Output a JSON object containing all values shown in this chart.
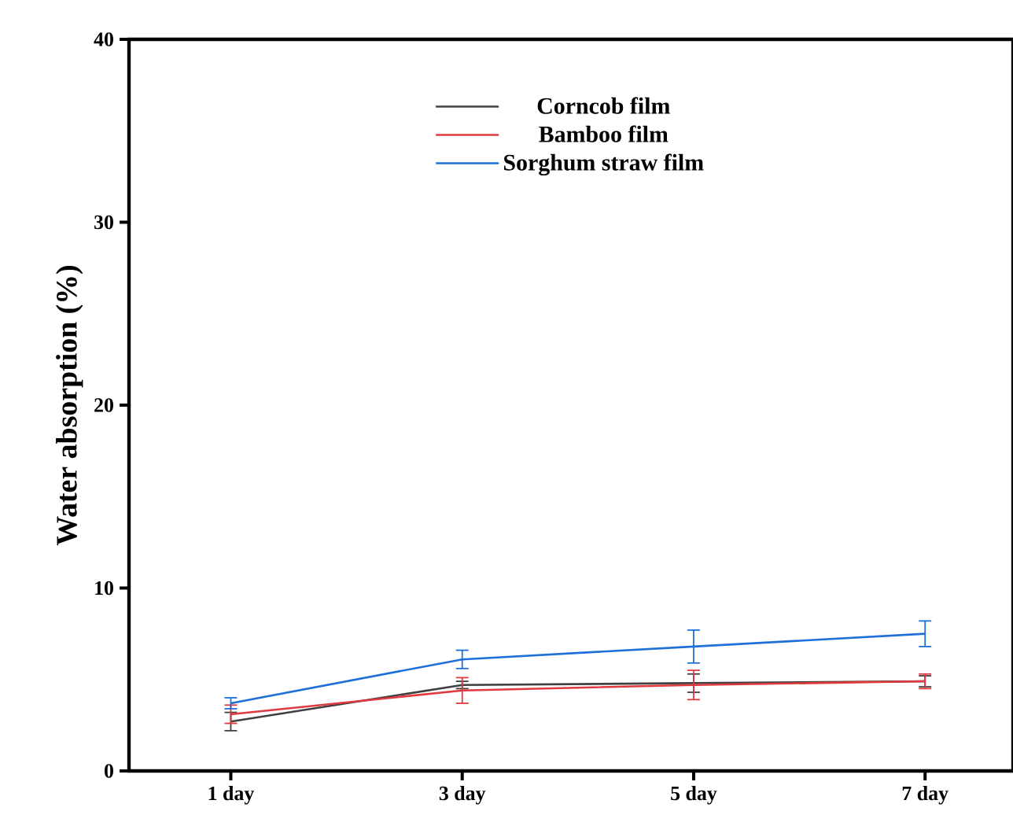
{
  "chart_data": {
    "type": "line",
    "ylabel": "Water absorption (%)",
    "categories": [
      "1 day",
      "3 day",
      "5 day",
      "7 day"
    ],
    "ylim": [
      0,
      40
    ],
    "yticks": [
      0,
      10,
      20,
      30,
      40
    ],
    "legend": "top",
    "grid": false,
    "marker": "none",
    "line_style": "solid",
    "series": [
      {
        "name": "Corncob film",
        "color": "#404040",
        "values": [
          2.7,
          4.7,
          4.8,
          4.9
        ],
        "errors": [
          0.5,
          0.2,
          0.5,
          0.3
        ]
      },
      {
        "name": "Bamboo film",
        "color": "#e0393e",
        "values": [
          3.1,
          4.4,
          4.7,
          4.9
        ],
        "errors": [
          0.5,
          0.7,
          0.8,
          0.4
        ]
      },
      {
        "name": "Sorghum straw film",
        "color": "#1f6fd9",
        "values": [
          3.7,
          6.1,
          6.8,
          7.5
        ],
        "errors": [
          0.3,
          0.5,
          0.9,
          0.7
        ]
      }
    ]
  }
}
